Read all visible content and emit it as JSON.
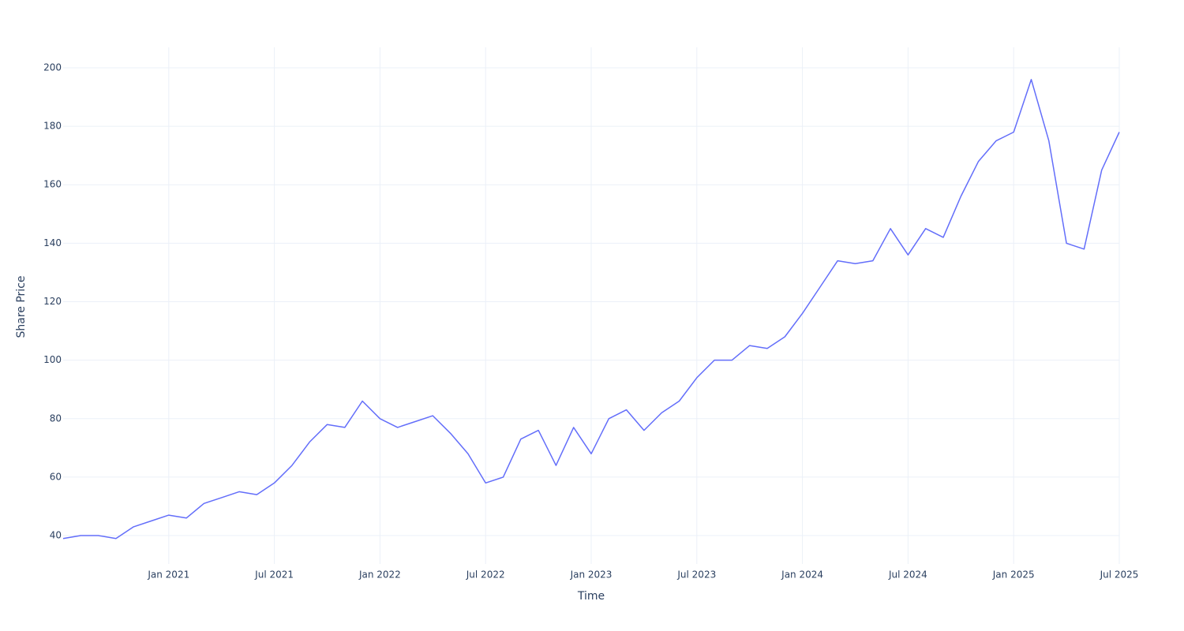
{
  "chart_data": {
    "type": "line",
    "x_label": "Time",
    "y_label": "Share Price",
    "x": [
      "2020-07",
      "2020-08",
      "2020-09",
      "2020-10",
      "2020-11",
      "2020-12",
      "2021-01",
      "2021-02",
      "2021-03",
      "2021-04",
      "2021-05",
      "2021-06",
      "2021-07",
      "2021-08",
      "2021-09",
      "2021-10",
      "2021-11",
      "2021-12",
      "2022-01",
      "2022-02",
      "2022-03",
      "2022-04",
      "2022-05",
      "2022-06",
      "2022-07",
      "2022-08",
      "2022-09",
      "2022-10",
      "2022-11",
      "2022-12",
      "2023-01",
      "2023-02",
      "2023-03",
      "2023-04",
      "2023-05",
      "2023-06",
      "2023-07",
      "2023-08",
      "2023-09",
      "2023-10",
      "2023-11",
      "2023-12",
      "2024-01",
      "2024-02",
      "2024-03",
      "2024-04",
      "2024-05",
      "2024-06",
      "2024-07",
      "2024-08",
      "2024-09",
      "2024-10",
      "2024-11",
      "2024-12",
      "2025-01",
      "2025-02",
      "2025-03",
      "2025-04",
      "2025-05",
      "2025-06",
      "2025-07"
    ],
    "values": [
      39,
      40,
      40,
      39,
      43,
      45,
      47,
      46,
      51,
      53,
      55,
      54,
      58,
      64,
      72,
      78,
      77,
      86,
      80,
      77,
      79,
      81,
      75,
      68,
      58,
      60,
      73,
      76,
      64,
      77,
      68,
      80,
      83,
      76,
      82,
      86,
      94,
      100,
      100,
      105,
      104,
      108,
      116,
      125,
      134,
      133,
      134,
      145,
      136,
      145,
      142,
      156,
      168,
      175,
      178,
      196,
      175,
      140,
      138,
      165,
      178
    ],
    "color": "#636efa",
    "xlim": [
      "2020-07",
      "2025-07"
    ],
    "xticks": [
      {
        "value": "2021-01",
        "label": "Jan 2021"
      },
      {
        "value": "2021-07",
        "label": "Jul 2021"
      },
      {
        "value": "2022-01",
        "label": "Jan 2022"
      },
      {
        "value": "2022-07",
        "label": "Jul 2022"
      },
      {
        "value": "2023-01",
        "label": "Jan 2023"
      },
      {
        "value": "2023-07",
        "label": "Jul 2023"
      },
      {
        "value": "2024-01",
        "label": "Jan 2024"
      },
      {
        "value": "2024-07",
        "label": "Jul 2024"
      },
      {
        "value": "2025-01",
        "label": "Jan 2025"
      },
      {
        "value": "2025-07",
        "label": "Jul 2025"
      }
    ],
    "ylim": [
      30.3,
      207
    ],
    "yticks": [
      40,
      60,
      80,
      100,
      120,
      140,
      160,
      180,
      200
    ],
    "grid": true
  }
}
